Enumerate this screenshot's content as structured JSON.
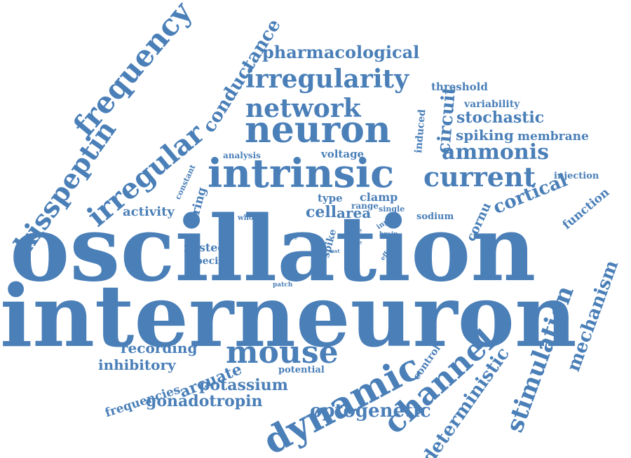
{
  "colors": {
    "word": "#4a7fb8",
    "background": "#ffffff"
  },
  "words": [
    {
      "text": "oscillation"
    },
    {
      "text": "interneuron"
    },
    {
      "text": "intrinsic"
    },
    {
      "text": "neuron"
    },
    {
      "text": "irregularity"
    },
    {
      "text": "network"
    },
    {
      "text": "frequency"
    },
    {
      "text": "kisspeptin"
    },
    {
      "text": "irregular"
    },
    {
      "text": "conductance"
    },
    {
      "text": "pharmacological"
    },
    {
      "text": "current"
    },
    {
      "text": "ammonis"
    },
    {
      "text": "dynamic"
    },
    {
      "text": "channel"
    },
    {
      "text": "mouse"
    },
    {
      "text": "stimulation"
    },
    {
      "text": "mechanism"
    },
    {
      "text": "deterministic"
    },
    {
      "text": "optogenetic"
    },
    {
      "text": "cortical"
    },
    {
      "text": "circuit"
    },
    {
      "text": "stochastic"
    },
    {
      "text": "spiking"
    },
    {
      "text": "membrane"
    },
    {
      "text": "threshold"
    },
    {
      "text": "variability"
    },
    {
      "text": "induced"
    },
    {
      "text": "injection"
    },
    {
      "text": "function"
    },
    {
      "text": "cornu"
    },
    {
      "text": "activity"
    },
    {
      "text": "firing"
    },
    {
      "text": "constant"
    },
    {
      "text": "analysis"
    },
    {
      "text": "voltage"
    },
    {
      "text": "type"
    },
    {
      "text": "clamp"
    },
    {
      "text": "cell"
    },
    {
      "text": "area"
    },
    {
      "text": "range"
    },
    {
      "text": "single"
    },
    {
      "text": "sodium"
    },
    {
      "text": "input"
    },
    {
      "text": "slice"
    },
    {
      "text": "brain"
    },
    {
      "text": "time"
    },
    {
      "text": "fast"
    },
    {
      "text": "effect"
    },
    {
      "text": "spike"
    },
    {
      "text": "whole"
    },
    {
      "text": "fire"
    },
    {
      "text": "nested"
    },
    {
      "text": "specific"
    },
    {
      "text": "patch"
    },
    {
      "text": "recording"
    },
    {
      "text": "inhibitory"
    },
    {
      "text": "arcuate"
    },
    {
      "text": "potential"
    },
    {
      "text": "control"
    },
    {
      "text": "frequencies"
    },
    {
      "text": "potassium"
    },
    {
      "text": "gonadotropin"
    }
  ]
}
